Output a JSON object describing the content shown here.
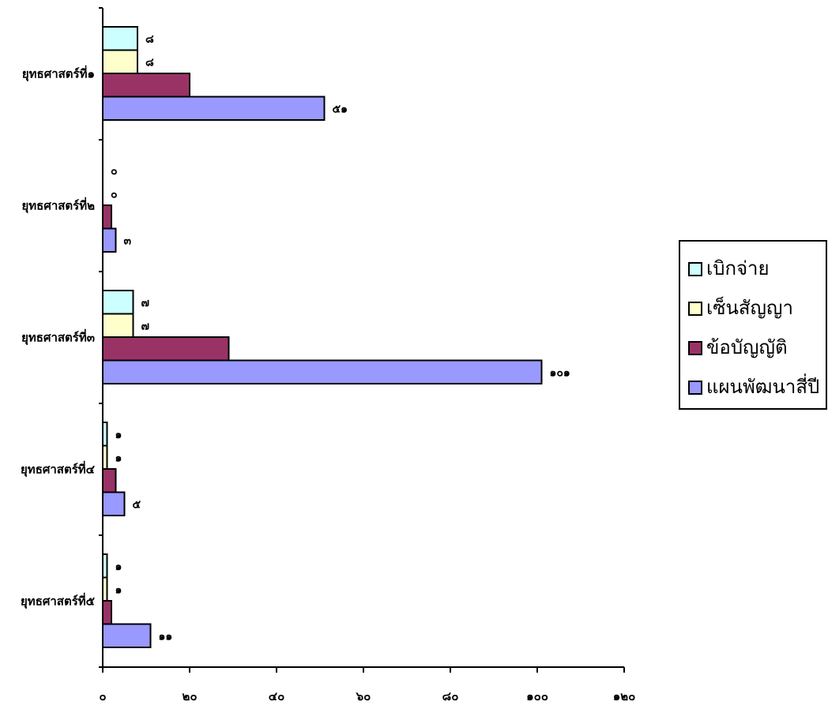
{
  "chart_data": {
    "type": "bar",
    "orientation": "horizontal",
    "categories": [
      "ยุทธศาสตร์ที่๑",
      "ยุทธศาสตร์ที่๒",
      "ยุทธศาสตร์ที่๓",
      "ยุทธศาสตร์ที่๔",
      "ยุทธศาสตร์ที่๕"
    ],
    "series": [
      {
        "name": "เบิกจ่าย",
        "color": "#CCFFFF",
        "values": [
          8,
          0,
          7,
          1,
          1
        ],
        "labels": [
          "๘",
          "๐",
          "๗",
          "๑",
          "๑"
        ]
      },
      {
        "name": "เซ็นสัญญา",
        "color": "#FFFFCC",
        "values": [
          8,
          0,
          7,
          1,
          1
        ],
        "labels": [
          "๘",
          "๐",
          "๗",
          "๑",
          "๑"
        ]
      },
      {
        "name": "ข้อบัญญัติ",
        "color": "#993366",
        "values": [
          20,
          2,
          29,
          3,
          2
        ],
        "labels": [
          "",
          "",
          "",
          "",
          ""
        ]
      },
      {
        "name": "แผนพัฒนาสี่ปี",
        "color": "#9999FF",
        "values": [
          51,
          3,
          101,
          5,
          11
        ],
        "labels": [
          "๕๑",
          "๓",
          "๑๐๑",
          "๕",
          "๑๑"
        ]
      }
    ],
    "xlim": [
      0,
      120
    ],
    "xticks": [
      0,
      20,
      40,
      60,
      80,
      100,
      120
    ],
    "xtick_labels": [
      "๐",
      "๒๐",
      "๔๐",
      "๖๐",
      "๘๐",
      "๑๐๐",
      "๑๒๐"
    ],
    "legend_position": "right",
    "grid": false
  }
}
